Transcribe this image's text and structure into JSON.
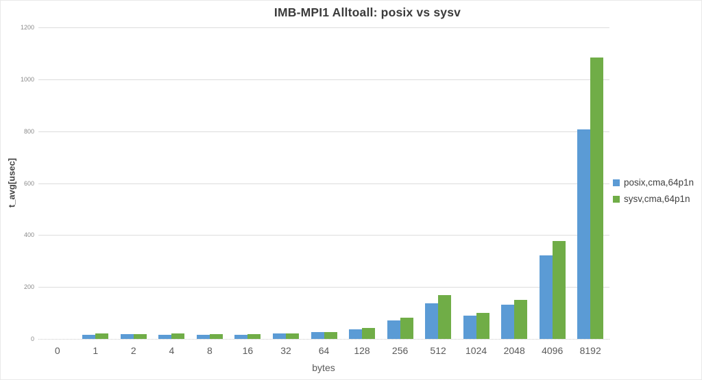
{
  "chart_data": {
    "type": "bar",
    "title": "IMB-MPI1 Alltoall: posix vs sysv",
    "xlabel": "bytes",
    "ylabel": "t_avg[usec]",
    "ylim": [
      0,
      1200
    ],
    "yticks": [
      0,
      200,
      400,
      600,
      800,
      1000,
      1200
    ],
    "grid": "horizontal",
    "gridline_color": "#DCDCDC",
    "legend_position": "right",
    "background": "#FFFFFF",
    "categories": [
      "0",
      "1",
      "2",
      "4",
      "8",
      "16",
      "32",
      "64",
      "128",
      "256",
      "512",
      "1024",
      "2048",
      "4096",
      "8192"
    ],
    "series": [
      {
        "name": "posix,cma,64p1n",
        "color": "#5B9BD5",
        "values": [
          0,
          15,
          18,
          17,
          15,
          17,
          20,
          26,
          38,
          71,
          137,
          90,
          133,
          322,
          806
        ]
      },
      {
        "name": "sysv,cma,64p1n",
        "color": "#70AD47",
        "values": [
          0,
          20,
          19,
          20,
          19,
          19,
          21,
          27,
          43,
          81,
          170,
          100,
          150,
          377,
          1084
        ]
      }
    ]
  }
}
